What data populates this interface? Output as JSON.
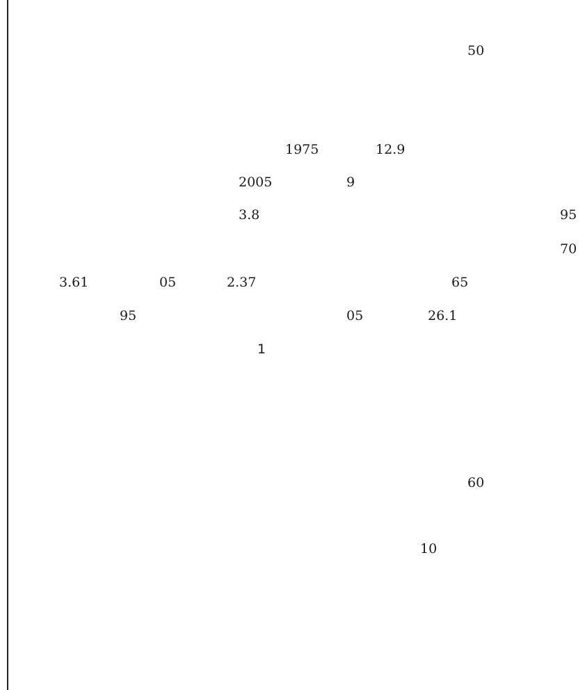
{
  "text_fragments": {
    "n50": "50",
    "n1975": "1975",
    "n12_9": "12.9",
    "n2005": "2005",
    "n9": "9",
    "n3_8": "3.8",
    "n95_right": "95",
    "n70": "70",
    "n3_61": "3.61",
    "n05_first": "05",
    "n2_37": "2.37",
    "n65": "65",
    "n95_left": "95",
    "n05_second": "05",
    "n26_1": "26.1",
    "n60": "60",
    "n10": "10"
  },
  "page_number": "1"
}
